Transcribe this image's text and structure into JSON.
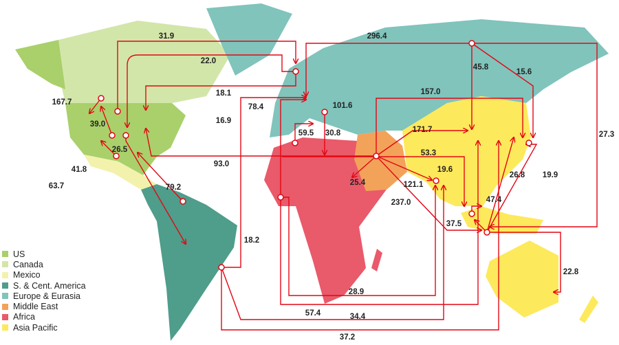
{
  "legend": [
    {
      "label": "US",
      "color": "#a9d06b"
    },
    {
      "label": "Canada",
      "color": "#d3e6aa"
    },
    {
      "label": "Mexico",
      "color": "#f2f2ad"
    },
    {
      "label": "S. & Cent. America",
      "color": "#4f9d8b"
    },
    {
      "label": "Europe & Eurasia",
      "color": "#80c4bc"
    },
    {
      "label": "Middle East",
      "color": "#f3a25a"
    },
    {
      "label": "Africa",
      "color": "#e95a6a"
    },
    {
      "label": "Asia Pacific",
      "color": "#fde95c"
    }
  ],
  "flow_color": "#e30613",
  "flow_labels": [
    "31.9",
    "22.0",
    "296.4",
    "45.8",
    "15.6",
    "157.0",
    "18.1",
    "78.4",
    "101.6",
    "167.7",
    "16.9",
    "59.5",
    "30.8",
    "171.7",
    "39.0",
    "26.5",
    "27.3",
    "53.3",
    "41.8",
    "93.0",
    "19.6",
    "26.8",
    "19.9",
    "25.4",
    "121.1",
    "79.2",
    "63.7",
    "237.0",
    "47.4",
    "37.5",
    "18.2",
    "22.8",
    "28.9",
    "57.4",
    "34.4",
    "37.2"
  ]
}
